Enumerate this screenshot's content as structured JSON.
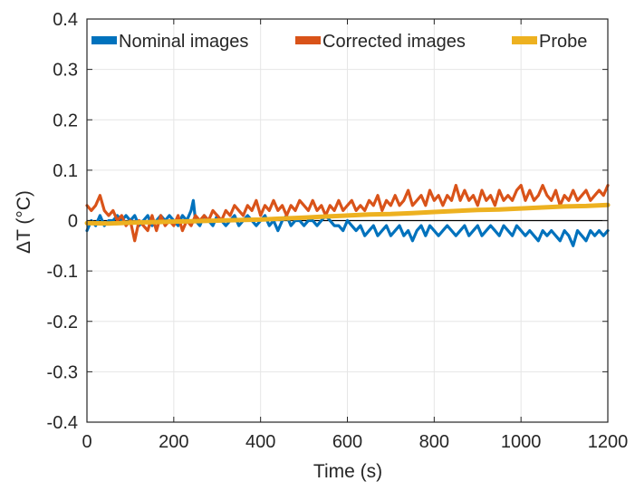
{
  "chart_data": {
    "type": "line",
    "title": "",
    "xlabel": "Time (s)",
    "ylabel": "ΔT (°C)",
    "xlim": [
      0,
      1200
    ],
    "ylim": [
      -0.4,
      0.4
    ],
    "xticks": [
      0,
      200,
      400,
      600,
      800,
      1000,
      1200
    ],
    "yticks": [
      -0.4,
      -0.3,
      -0.2,
      -0.1,
      0,
      0.1,
      0.2,
      0.3,
      0.4
    ],
    "xtick_labels": [
      "0",
      "200",
      "400",
      "600",
      "800",
      "1000",
      "1200"
    ],
    "ytick_labels": [
      "-0.4",
      "-0.3",
      "-0.2",
      "-0.1",
      "0",
      "0.1",
      "0.2",
      "0.3",
      "0.4"
    ],
    "grid": true,
    "legend_position": "top",
    "zero_line": true,
    "series": [
      {
        "name": "Nominal images",
        "color": "#0072BD",
        "x": [
          0,
          10,
          20,
          30,
          40,
          50,
          60,
          70,
          80,
          90,
          100,
          110,
          120,
          130,
          140,
          150,
          160,
          170,
          180,
          190,
          200,
          210,
          220,
          230,
          240,
          245,
          250,
          260,
          270,
          280,
          290,
          300,
          310,
          320,
          330,
          340,
          350,
          360,
          370,
          380,
          390,
          400,
          410,
          420,
          430,
          440,
          450,
          460,
          470,
          480,
          490,
          500,
          510,
          520,
          530,
          540,
          550,
          560,
          570,
          580,
          590,
          600,
          610,
          620,
          630,
          640,
          650,
          660,
          670,
          680,
          690,
          700,
          710,
          720,
          730,
          740,
          750,
          760,
          770,
          780,
          790,
          800,
          810,
          820,
          830,
          840,
          850,
          860,
          870,
          880,
          890,
          900,
          910,
          920,
          930,
          940,
          950,
          960,
          970,
          980,
          990,
          1000,
          1010,
          1020,
          1030,
          1040,
          1050,
          1060,
          1070,
          1080,
          1090,
          1100,
          1110,
          1120,
          1130,
          1140,
          1150,
          1160,
          1170,
          1180,
          1190,
          1200
        ],
        "values": [
          -0.02,
          0.0,
          -0.01,
          0.01,
          -0.01,
          0.0,
          0.0,
          0.01,
          0.0,
          0.01,
          0.0,
          0.01,
          -0.01,
          0.0,
          0.01,
          -0.01,
          0.0,
          0.01,
          0.0,
          0.01,
          0.0,
          -0.01,
          0.01,
          0.0,
          0.02,
          0.04,
          0.0,
          -0.01,
          0.01,
          0.0,
          -0.01,
          0.01,
          0.0,
          -0.01,
          0.0,
          0.01,
          -0.01,
          0.0,
          0.01,
          0.0,
          -0.01,
          0.0,
          0.01,
          -0.01,
          0.0,
          -0.02,
          0.0,
          0.01,
          -0.01,
          0.0,
          0.0,
          -0.01,
          0.0,
          0.0,
          -0.01,
          0.0,
          0.01,
          0.0,
          -0.01,
          -0.01,
          -0.02,
          0.0,
          -0.01,
          -0.02,
          -0.01,
          -0.03,
          -0.02,
          -0.01,
          -0.03,
          -0.02,
          -0.01,
          -0.03,
          -0.02,
          -0.01,
          -0.03,
          -0.02,
          -0.04,
          -0.02,
          -0.01,
          -0.03,
          -0.01,
          -0.02,
          -0.03,
          -0.02,
          -0.01,
          -0.02,
          -0.03,
          -0.02,
          -0.01,
          -0.03,
          -0.02,
          -0.01,
          -0.03,
          -0.02,
          -0.01,
          -0.02,
          -0.03,
          -0.01,
          -0.02,
          -0.03,
          -0.01,
          -0.02,
          -0.03,
          -0.02,
          -0.03,
          -0.04,
          -0.02,
          -0.03,
          -0.02,
          -0.03,
          -0.04,
          -0.02,
          -0.03,
          -0.05,
          -0.02,
          -0.03,
          -0.04,
          -0.02,
          -0.03,
          -0.02,
          -0.03,
          -0.02
        ]
      },
      {
        "name": "Corrected images",
        "color": "#D95319",
        "x": [
          0,
          10,
          20,
          30,
          40,
          50,
          60,
          70,
          80,
          90,
          100,
          110,
          120,
          130,
          140,
          150,
          160,
          170,
          180,
          190,
          200,
          210,
          220,
          230,
          240,
          250,
          260,
          270,
          280,
          290,
          300,
          310,
          320,
          330,
          340,
          350,
          360,
          370,
          380,
          390,
          400,
          410,
          420,
          430,
          440,
          450,
          460,
          470,
          480,
          490,
          500,
          510,
          520,
          530,
          540,
          550,
          560,
          570,
          580,
          590,
          600,
          610,
          620,
          630,
          640,
          650,
          660,
          670,
          680,
          690,
          700,
          710,
          720,
          730,
          740,
          750,
          760,
          770,
          780,
          790,
          800,
          810,
          820,
          830,
          840,
          850,
          860,
          870,
          880,
          890,
          900,
          910,
          920,
          930,
          940,
          950,
          960,
          970,
          980,
          990,
          1000,
          1010,
          1020,
          1030,
          1040,
          1050,
          1060,
          1070,
          1080,
          1090,
          1100,
          1110,
          1120,
          1130,
          1140,
          1150,
          1160,
          1170,
          1180,
          1190,
          1200
        ],
        "values": [
          0.03,
          0.02,
          0.03,
          0.05,
          0.02,
          0.01,
          0.02,
          0.0,
          0.01,
          -0.01,
          0.0,
          -0.04,
          0.0,
          -0.01,
          -0.02,
          0.01,
          -0.02,
          0.01,
          -0.01,
          0.0,
          -0.01,
          0.01,
          -0.02,
          0.0,
          -0.01,
          0.01,
          0.0,
          0.01,
          0.0,
          0.02,
          0.01,
          0.0,
          0.02,
          0.01,
          0.03,
          0.02,
          0.01,
          0.03,
          0.02,
          0.04,
          0.01,
          0.03,
          0.02,
          0.04,
          0.02,
          0.03,
          0.01,
          0.03,
          0.02,
          0.04,
          0.03,
          0.02,
          0.04,
          0.02,
          0.03,
          0.01,
          0.03,
          0.02,
          0.04,
          0.02,
          0.03,
          0.04,
          0.02,
          0.03,
          0.02,
          0.04,
          0.03,
          0.05,
          0.02,
          0.04,
          0.03,
          0.05,
          0.03,
          0.04,
          0.06,
          0.03,
          0.04,
          0.05,
          0.03,
          0.06,
          0.04,
          0.05,
          0.03,
          0.05,
          0.04,
          0.07,
          0.04,
          0.06,
          0.04,
          0.05,
          0.03,
          0.06,
          0.04,
          0.05,
          0.03,
          0.06,
          0.04,
          0.05,
          0.04,
          0.06,
          0.07,
          0.04,
          0.06,
          0.04,
          0.05,
          0.07,
          0.05,
          0.04,
          0.06,
          0.03,
          0.05,
          0.04,
          0.06,
          0.04,
          0.05,
          0.06,
          0.04,
          0.05,
          0.06,
          0.05,
          0.07
        ]
      },
      {
        "name": "Probe",
        "color": "#EDB120",
        "x": [
          0,
          50,
          100,
          150,
          200,
          250,
          300,
          350,
          400,
          450,
          500,
          550,
          600,
          650,
          700,
          750,
          800,
          850,
          900,
          950,
          1000,
          1050,
          1100,
          1150,
          1200
        ],
        "values": [
          -0.005,
          -0.006,
          -0.004,
          -0.003,
          -0.002,
          -0.001,
          0.0,
          0.001,
          0.002,
          0.004,
          0.006,
          0.008,
          0.01,
          0.012,
          0.013,
          0.015,
          0.017,
          0.019,
          0.021,
          0.022,
          0.024,
          0.026,
          0.028,
          0.029,
          0.031
        ]
      }
    ]
  }
}
